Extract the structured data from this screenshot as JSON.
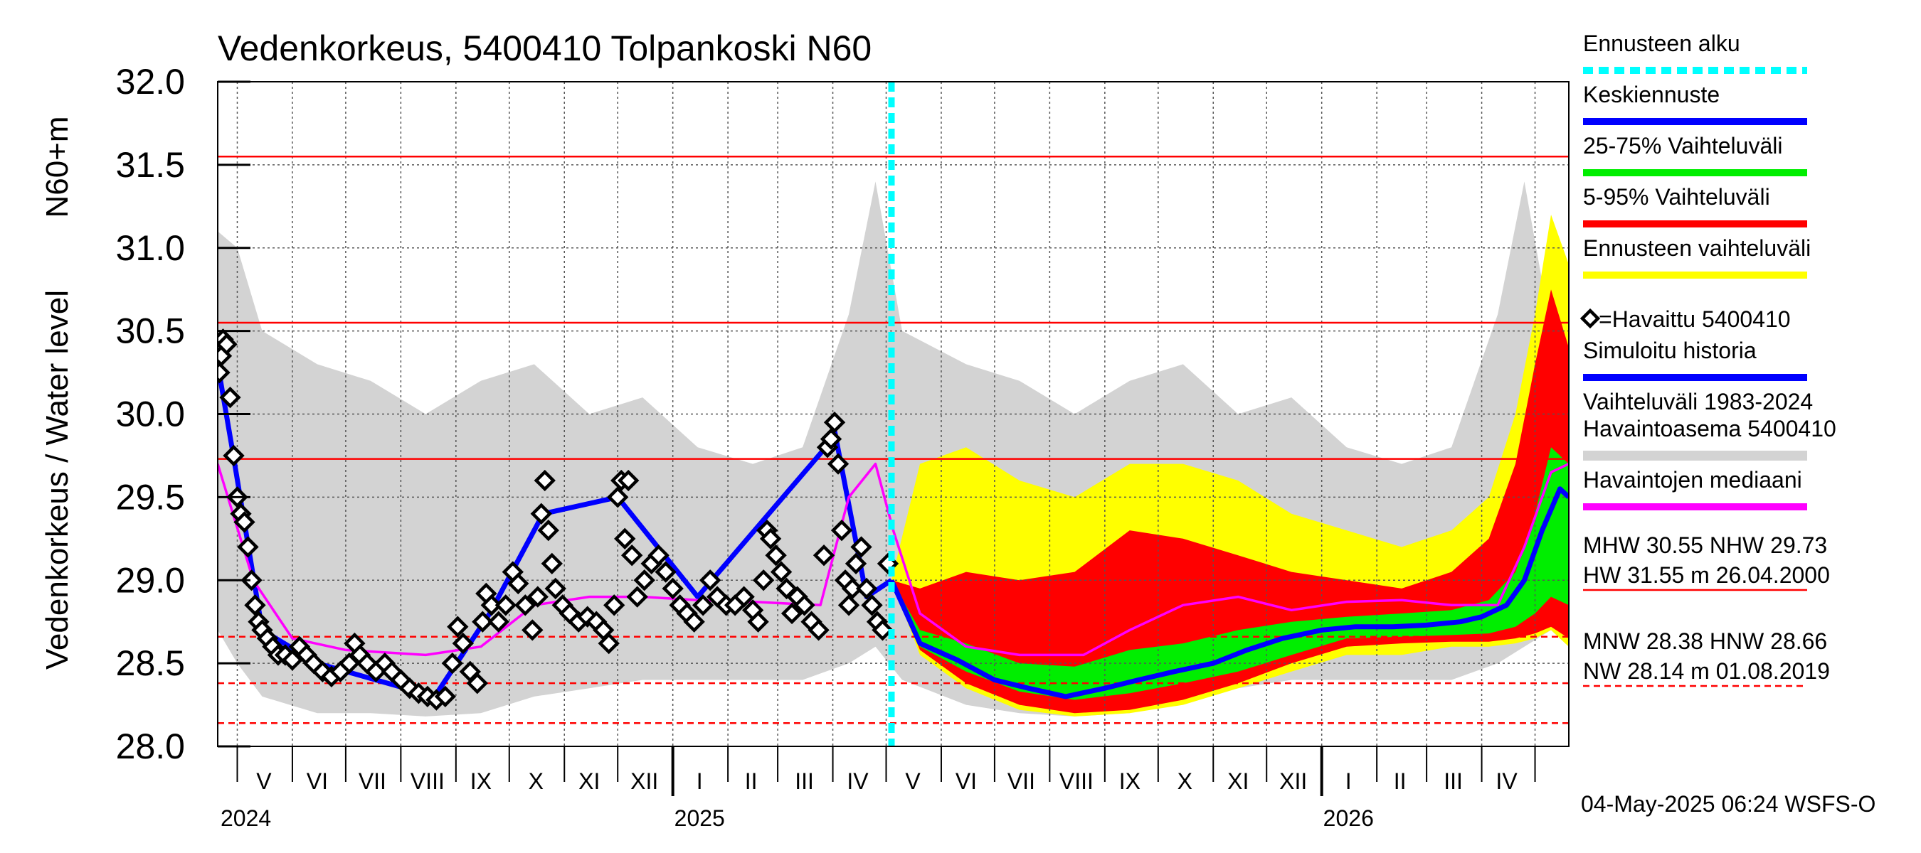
{
  "chart_data": {
    "type": "area",
    "title": "Vedenkorkeus, 5400410 Tolpankoski N60",
    "ylabel_left": "Vedenkorkeus / Water level",
    "ylabel_unit": "N60+m",
    "ylim": [
      28.0,
      32.0
    ],
    "yticks": [
      "28.0",
      "28.5",
      "29.0",
      "29.5",
      "30.0",
      "30.5",
      "31.0",
      "31.5",
      "32.0"
    ],
    "xlim": [
      "2024-04-20",
      "2026-05-20"
    ],
    "month_labels": [
      {
        "label": "V",
        "date": "2024-05-16"
      },
      {
        "label": "VI",
        "date": "2024-06-15"
      },
      {
        "label": "VII",
        "date": "2024-07-16"
      },
      {
        "label": "VIII",
        "date": "2024-08-16"
      },
      {
        "label": "IX",
        "date": "2024-09-15"
      },
      {
        "label": "X",
        "date": "2024-10-16"
      },
      {
        "label": "XI",
        "date": "2024-11-15"
      },
      {
        "label": "XII",
        "date": "2024-12-16"
      },
      {
        "label": "I",
        "date": "2025-01-16"
      },
      {
        "label": "II",
        "date": "2025-02-14"
      },
      {
        "label": "III",
        "date": "2025-03-16"
      },
      {
        "label": "IV",
        "date": "2025-04-15"
      },
      {
        "label": "V",
        "date": "2025-05-16"
      },
      {
        "label": "VI",
        "date": "2025-06-15"
      },
      {
        "label": "VII",
        "date": "2025-07-16"
      },
      {
        "label": "VIII",
        "date": "2025-08-16"
      },
      {
        "label": "IX",
        "date": "2025-09-15"
      },
      {
        "label": "X",
        "date": "2025-10-16"
      },
      {
        "label": "XI",
        "date": "2025-11-15"
      },
      {
        "label": "XII",
        "date": "2025-12-16"
      },
      {
        "label": "I",
        "date": "2026-01-16"
      },
      {
        "label": "II",
        "date": "2026-02-14"
      },
      {
        "label": "III",
        "date": "2026-03-16"
      },
      {
        "label": "IV",
        "date": "2026-04-15"
      }
    ],
    "year_labels": [
      {
        "label": "2024",
        "date": "2024-04-20"
      },
      {
        "label": "2025",
        "date": "2025-01-01"
      },
      {
        "label": "2026",
        "date": "2026-01-01"
      }
    ],
    "forecast_start": "2025-05-04",
    "reference_lines": [
      {
        "name": "HW",
        "value": 31.55,
        "style": "solid"
      },
      {
        "name": "MHW",
        "value": 30.55,
        "style": "solid"
      },
      {
        "name": "NHW",
        "value": 29.73,
        "style": "solid"
      },
      {
        "name": "HNW",
        "value": 28.66,
        "style": "dashed"
      },
      {
        "name": "MNW",
        "value": 28.38,
        "style": "dashed"
      },
      {
        "name": "NW",
        "value": 28.14,
        "style": "dashed"
      }
    ],
    "observed": {
      "name": "=Havaittu 5400410",
      "points": [
        [
          "2024-04-21",
          30.25
        ],
        [
          "2024-04-22",
          30.35
        ],
        [
          "2024-04-23",
          30.45
        ],
        [
          "2024-04-25",
          30.42
        ],
        [
          "2024-04-27",
          30.1
        ],
        [
          "2024-04-29",
          29.75
        ],
        [
          "2024-05-01",
          29.5
        ],
        [
          "2024-05-03",
          29.4
        ],
        [
          "2024-05-05",
          29.35
        ],
        [
          "2024-05-07",
          29.2
        ],
        [
          "2024-05-09",
          29.0
        ],
        [
          "2024-05-11",
          28.85
        ],
        [
          "2024-05-13",
          28.75
        ],
        [
          "2024-05-15",
          28.7
        ],
        [
          "2024-05-18",
          28.65
        ],
        [
          "2024-05-21",
          28.6
        ],
        [
          "2024-05-24",
          28.55
        ],
        [
          "2024-05-28",
          28.55
        ],
        [
          "2024-06-01",
          28.52
        ],
        [
          "2024-06-05",
          28.6
        ],
        [
          "2024-06-09",
          28.55
        ],
        [
          "2024-06-13",
          28.5
        ],
        [
          "2024-06-18",
          28.45
        ],
        [
          "2024-06-23",
          28.42
        ],
        [
          "2024-06-28",
          28.45
        ],
        [
          "2024-07-03",
          28.5
        ],
        [
          "2024-07-06",
          28.62
        ],
        [
          "2024-07-09",
          28.55
        ],
        [
          "2024-07-13",
          28.5
        ],
        [
          "2024-07-18",
          28.45
        ],
        [
          "2024-07-23",
          28.5
        ],
        [
          "2024-07-27",
          28.45
        ],
        [
          "2024-08-01",
          28.4
        ],
        [
          "2024-08-06",
          28.35
        ],
        [
          "2024-08-11",
          28.32
        ],
        [
          "2024-08-16",
          28.3
        ],
        [
          "2024-08-21",
          28.28
        ],
        [
          "2024-08-26",
          28.3
        ],
        [
          "2024-08-30",
          28.5
        ],
        [
          "2024-09-02",
          28.72
        ],
        [
          "2024-09-05",
          28.62
        ],
        [
          "2024-09-09",
          28.45
        ],
        [
          "2024-09-13",
          28.38
        ],
        [
          "2024-09-16",
          28.75
        ],
        [
          "2024-09-18",
          28.92
        ],
        [
          "2024-09-21",
          28.85
        ],
        [
          "2024-09-25",
          28.75
        ],
        [
          "2024-09-29",
          28.85
        ],
        [
          "2024-10-03",
          29.05
        ],
        [
          "2024-10-06",
          28.98
        ],
        [
          "2024-10-10",
          28.85
        ],
        [
          "2024-10-14",
          28.7
        ],
        [
          "2024-10-17",
          28.9
        ],
        [
          "2024-10-19",
          29.4
        ],
        [
          "2024-10-21",
          29.6
        ],
        [
          "2024-10-23",
          29.3
        ],
        [
          "2024-10-25",
          29.1
        ],
        [
          "2024-10-27",
          28.95
        ],
        [
          "2024-10-31",
          28.85
        ],
        [
          "2024-11-04",
          28.8
        ],
        [
          "2024-11-09",
          28.75
        ],
        [
          "2024-11-14",
          28.78
        ],
        [
          "2024-11-19",
          28.75
        ],
        [
          "2024-11-23",
          28.7
        ],
        [
          "2024-11-26",
          28.62
        ],
        [
          "2024-11-29",
          28.85
        ],
        [
          "2024-12-01",
          29.5
        ],
        [
          "2024-12-03",
          29.6
        ],
        [
          "2024-12-05",
          29.25
        ],
        [
          "2024-12-07",
          29.6
        ],
        [
          "2024-12-09",
          29.15
        ],
        [
          "2024-12-12",
          28.9
        ],
        [
          "2024-12-16",
          29.0
        ],
        [
          "2024-12-20",
          29.1
        ],
        [
          "2024-12-24",
          29.15
        ],
        [
          "2024-12-28",
          29.05
        ],
        [
          "2025-01-01",
          28.95
        ],
        [
          "2025-01-05",
          28.85
        ],
        [
          "2025-01-09",
          28.8
        ],
        [
          "2025-01-13",
          28.75
        ],
        [
          "2025-01-18",
          28.85
        ],
        [
          "2025-01-22",
          29.0
        ],
        [
          "2025-01-26",
          28.9
        ],
        [
          "2025-01-31",
          28.85
        ],
        [
          "2025-02-05",
          28.85
        ],
        [
          "2025-02-10",
          28.9
        ],
        [
          "2025-02-15",
          28.82
        ],
        [
          "2025-02-18",
          28.75
        ],
        [
          "2025-02-21",
          29.0
        ],
        [
          "2025-02-23",
          29.3
        ],
        [
          "2025-02-25",
          29.25
        ],
        [
          "2025-02-28",
          29.15
        ],
        [
          "2025-03-03",
          29.05
        ],
        [
          "2025-03-06",
          28.95
        ],
        [
          "2025-03-09",
          28.8
        ],
        [
          "2025-03-12",
          28.9
        ],
        [
          "2025-03-16",
          28.85
        ],
        [
          "2025-03-20",
          28.75
        ],
        [
          "2025-03-24",
          28.7
        ],
        [
          "2025-03-27",
          29.15
        ],
        [
          "2025-03-29",
          29.8
        ],
        [
          "2025-03-31",
          29.85
        ],
        [
          "2025-04-02",
          29.95
        ],
        [
          "2025-04-04",
          29.7
        ],
        [
          "2025-04-06",
          29.3
        ],
        [
          "2025-04-08",
          29.0
        ],
        [
          "2025-04-10",
          28.85
        ],
        [
          "2025-04-12",
          28.95
        ],
        [
          "2025-04-14",
          29.1
        ],
        [
          "2025-04-17",
          29.2
        ],
        [
          "2025-04-20",
          28.95
        ],
        [
          "2025-04-23",
          28.85
        ],
        [
          "2025-04-26",
          28.75
        ],
        [
          "2025-04-29",
          28.7
        ],
        [
          "2025-05-02",
          29.1
        ]
      ]
    },
    "series": [
      {
        "name": "Keskiennuste",
        "color": "#0000ff",
        "x": [
          "2025-05-04",
          "2025-05-20",
          "2025-06-10",
          "2025-07-01",
          "2025-07-20",
          "2025-08-10",
          "2025-09-01",
          "2025-09-20",
          "2025-10-10",
          "2025-11-01",
          "2025-11-20",
          "2025-12-10",
          "2026-01-01",
          "2026-01-20",
          "2026-02-10",
          "2026-03-01",
          "2026-03-20",
          "2026-04-01",
          "2026-04-15",
          "2026-04-25",
          "2026-05-05",
          "2026-05-15",
          "2026-05-20"
        ],
        "values": [
          29.0,
          28.62,
          28.52,
          28.4,
          28.35,
          28.3,
          28.35,
          28.4,
          28.45,
          28.5,
          28.58,
          28.65,
          28.7,
          28.72,
          28.72,
          28.73,
          28.75,
          28.78,
          28.85,
          29.0,
          29.3,
          29.55,
          29.5
        ]
      },
      {
        "name": "Simuloitu historia",
        "color": "#0000ff",
        "x": [
          "2024-04-20",
          "2024-04-28",
          "2024-05-15",
          "2024-06-15",
          "2024-08-20",
          "2024-09-20",
          "2024-10-20",
          "2024-12-01",
          "2025-01-15",
          "2025-03-28",
          "2025-04-02",
          "2025-04-20",
          "2025-05-04"
        ],
        "values": [
          30.3,
          29.8,
          28.7,
          28.5,
          28.3,
          28.8,
          29.4,
          29.5,
          28.9,
          29.8,
          29.9,
          28.9,
          29.0
        ]
      },
      {
        "name": "Havaintojen mediaani",
        "color": "#ff00ff",
        "x": [
          "2024-04-20",
          "2024-05-10",
          "2024-06-01",
          "2024-07-01",
          "2024-08-15",
          "2024-09-15",
          "2024-10-15",
          "2024-11-15",
          "2024-12-15",
          "2025-01-15",
          "2025-02-15",
          "2025-03-25",
          "2025-04-10",
          "2025-04-25",
          "2025-05-05",
          "2025-05-20",
          "2025-06-15",
          "2025-07-15",
          "2025-08-20",
          "2025-09-15",
          "2025-10-15",
          "2025-11-15",
          "2025-12-15",
          "2026-01-15",
          "2026-02-15",
          "2026-03-15",
          "2026-04-10",
          "2026-04-25",
          "2026-05-10",
          "2026-05-20"
        ],
        "values": [
          29.7,
          29.0,
          28.65,
          28.58,
          28.55,
          28.6,
          28.85,
          28.9,
          28.9,
          28.88,
          28.87,
          28.85,
          29.5,
          29.7,
          29.3,
          28.8,
          28.6,
          28.55,
          28.55,
          28.7,
          28.85,
          28.9,
          28.82,
          28.87,
          28.88,
          28.85,
          28.85,
          29.2,
          29.65,
          29.7
        ]
      }
    ],
    "bands": [
      {
        "name": "Vaihteluväli 1983-2024 Havaintoasema 5400410",
        "color": "#d3d3d3",
        "x": [
          "2024-04-20",
          "2024-05-01",
          "2024-05-15",
          "2024-06-15",
          "2024-07-15",
          "2024-08-15",
          "2024-09-15",
          "2024-10-15",
          "2024-11-15",
          "2024-12-15",
          "2025-01-15",
          "2025-02-15",
          "2025-03-15",
          "2025-04-10",
          "2025-04-25",
          "2025-05-10",
          "2025-06-15",
          "2025-07-15",
          "2025-08-15",
          "2025-09-15",
          "2025-10-15",
          "2025-11-15",
          "2025-12-15",
          "2026-01-15",
          "2026-02-15",
          "2026-03-15",
          "2026-04-10",
          "2026-04-25",
          "2026-05-10",
          "2026-05-20"
        ],
        "low": [
          28.7,
          28.5,
          28.3,
          28.2,
          28.2,
          28.18,
          28.2,
          28.3,
          28.35,
          28.4,
          28.4,
          28.4,
          28.4,
          28.5,
          28.6,
          28.4,
          28.25,
          28.2,
          28.18,
          28.2,
          28.3,
          28.35,
          28.4,
          28.4,
          28.4,
          28.4,
          28.5,
          28.6,
          28.7,
          28.6
        ],
        "high": [
          31.1,
          31.0,
          30.5,
          30.3,
          30.2,
          30.0,
          30.2,
          30.3,
          30.0,
          30.1,
          29.8,
          29.7,
          29.8,
          30.6,
          31.4,
          30.5,
          30.3,
          30.2,
          30.0,
          30.2,
          30.3,
          30.0,
          30.1,
          29.8,
          29.7,
          29.8,
          30.6,
          31.4,
          30.5,
          29.0
        ]
      },
      {
        "name": "Ennusteen vaihteluväli",
        "color": "#ffff00",
        "x": [
          "2025-05-04",
          "2025-05-20",
          "2025-06-15",
          "2025-07-15",
          "2025-08-15",
          "2025-09-15",
          "2025-10-15",
          "2025-11-15",
          "2025-12-15",
          "2026-01-15",
          "2026-02-15",
          "2026-03-15",
          "2026-04-05",
          "2026-04-20",
          "2026-05-01",
          "2026-05-10",
          "2026-05-20"
        ],
        "low": [
          29.0,
          28.55,
          28.35,
          28.22,
          28.18,
          28.2,
          28.25,
          28.35,
          28.45,
          28.55,
          28.55,
          28.6,
          28.6,
          28.62,
          28.65,
          28.7,
          28.6
        ],
        "high": [
          29.0,
          29.7,
          29.8,
          29.6,
          29.5,
          29.7,
          29.7,
          29.6,
          29.4,
          29.3,
          29.2,
          29.3,
          29.5,
          30.0,
          30.6,
          31.2,
          30.9
        ]
      },
      {
        "name": "5-95% Vaihteluväli",
        "color": "#ff0000",
        "x": [
          "2025-05-04",
          "2025-05-20",
          "2025-06-15",
          "2025-07-15",
          "2025-08-15",
          "2025-09-15",
          "2025-10-15",
          "2025-11-15",
          "2025-12-15",
          "2026-01-15",
          "2026-02-15",
          "2026-03-15",
          "2026-04-05",
          "2026-04-20",
          "2026-05-01",
          "2026-05-10",
          "2026-05-20"
        ],
        "low": [
          29.0,
          28.58,
          28.38,
          28.25,
          28.2,
          28.22,
          28.28,
          28.38,
          28.5,
          28.6,
          28.62,
          28.63,
          28.63,
          28.65,
          28.68,
          28.72,
          28.65
        ],
        "high": [
          29.0,
          28.95,
          29.05,
          29.0,
          29.05,
          29.3,
          29.25,
          29.15,
          29.05,
          29.0,
          28.95,
          29.05,
          29.25,
          29.7,
          30.3,
          30.75,
          30.4
        ]
      },
      {
        "name": "25-75% Vaihteluväli",
        "color": "#00ee00",
        "x": [
          "2025-05-04",
          "2025-05-20",
          "2025-06-15",
          "2025-07-15",
          "2025-08-15",
          "2025-09-15",
          "2025-10-15",
          "2025-11-15",
          "2025-12-15",
          "2026-01-15",
          "2026-02-15",
          "2026-03-15",
          "2026-04-05",
          "2026-04-20",
          "2026-05-01",
          "2026-05-10",
          "2026-05-20"
        ],
        "low": [
          29.0,
          28.6,
          28.45,
          28.33,
          28.28,
          28.32,
          28.38,
          28.45,
          28.55,
          28.65,
          28.66,
          28.67,
          28.68,
          28.72,
          28.8,
          28.9,
          28.85
        ],
        "high": [
          29.0,
          28.7,
          28.62,
          28.5,
          28.48,
          28.58,
          28.62,
          28.7,
          28.75,
          28.78,
          28.8,
          28.82,
          28.88,
          29.05,
          29.4,
          29.8,
          29.7
        ]
      }
    ],
    "legend": {
      "position": "right",
      "items": [
        {
          "label": "Ennusteen alku",
          "kind": "dashed",
          "color": "#00ffff"
        },
        {
          "label": "Keskiennuste",
          "kind": "line",
          "color": "#0000ff"
        },
        {
          "label": "25-75% Vaihteluväli",
          "kind": "line",
          "color": "#00ee00"
        },
        {
          "label": "5-95% Vaihteluväli",
          "kind": "line",
          "color": "#ff0000"
        },
        {
          "label": "Ennusteen vaihteluväli",
          "kind": "line",
          "color": "#ffff00"
        },
        {
          "label": "=Havaittu 5400410",
          "kind": "marker",
          "color": "#000000"
        },
        {
          "label": "Simuloitu historia",
          "kind": "line",
          "color": "#0000ff"
        },
        {
          "label": "Vaihteluväli 1983-2024",
          "label2": " Havaintoasema 5400410",
          "kind": "line",
          "color": "#d3d3d3"
        },
        {
          "label": "Havaintojen mediaani",
          "kind": "line",
          "color": "#ff00ff"
        }
      ]
    },
    "stats": [
      {
        "lines": [
          "MHW  30.55 NHW  29.73",
          "HW  31.55 m 26.04.2000"
        ],
        "style": "solid"
      },
      {
        "lines": [
          "MNW  28.38 HNW  28.66",
          "NW  28.14 m 01.08.2019"
        ],
        "style": "dashed"
      }
    ],
    "footer": "04-May-2025 06:24 WSFS-O",
    "grid": true
  }
}
